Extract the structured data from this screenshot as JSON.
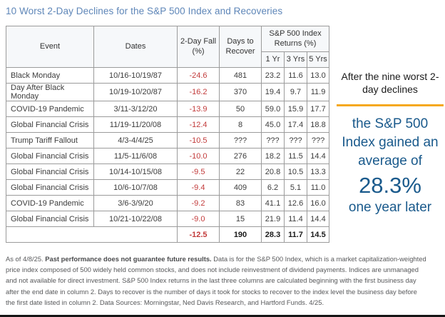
{
  "title": "10 Worst 2-Day Declines for the S&P 500 Index and Recoveries",
  "colors": {
    "title_blue": "#5e86b8",
    "callout_blue": "#1a5a8c",
    "accent_orange": "#f5a81e",
    "negative_red": "#c23b3b",
    "header_bg": "#f6f8fa",
    "outer_border": "#4d4d4d",
    "inner_border": "#9b9b9b"
  },
  "table": {
    "headers": {
      "event": "Event",
      "dates": "Dates",
      "two_day_fall": "2-Day Fall (%)",
      "days_to_recover": "Days to Recover",
      "returns_group": "S&P 500 Index Returns (%)",
      "sub": [
        "1 Yr",
        "3 Yrs",
        "5 Yrs"
      ]
    },
    "rows": [
      {
        "event": "Black Monday",
        "dates": "10/16-10/19/87",
        "fall": "-24.6",
        "days": "481",
        "yr1": "23.2",
        "yr3": "11.6",
        "yr5": "13.0"
      },
      {
        "event": "Day After Black Monday",
        "dates": "10/19-10/20/87",
        "fall": "-16.2",
        "days": "370",
        "yr1": "19.4",
        "yr3": "9.7",
        "yr5": "11.9"
      },
      {
        "event": "COVID-19 Pandemic",
        "dates": "3/11-3/12/20",
        "fall": "-13.9",
        "days": "50",
        "yr1": "59.0",
        "yr3": "15.9",
        "yr5": "17.7"
      },
      {
        "event": "Global Financial Crisis",
        "dates": "11/19-11/20/08",
        "fall": "-12.4",
        "days": "8",
        "yr1": "45.0",
        "yr3": "17.4",
        "yr5": "18.8"
      },
      {
        "event": "Trump Tariff Fallout",
        "dates": "4/3-4/4/25",
        "fall": "-10.5",
        "days": "???",
        "yr1": "???",
        "yr3": "???",
        "yr5": "???"
      },
      {
        "event": "Global Financial Crisis",
        "dates": "11/5-11/6/08",
        "fall": "-10.0",
        "days": "276",
        "yr1": "18.2",
        "yr3": "11.5",
        "yr5": "14.4"
      },
      {
        "event": "Global Financial Crisis",
        "dates": "10/14-10/15/08",
        "fall": "-9.5",
        "days": "22",
        "yr1": "20.8",
        "yr3": "10.5",
        "yr5": "13.3"
      },
      {
        "event": "Global Financial Crisis",
        "dates": "10/6-10/7/08",
        "fall": "-9.4",
        "days": "409",
        "yr1": "6.2",
        "yr3": "5.1",
        "yr5": "11.0"
      },
      {
        "event": "COVID-19 Pandemic",
        "dates": "3/6-3/9/20",
        "fall": "-9.2",
        "days": "83",
        "yr1": "41.1",
        "yr3": "12.6",
        "yr5": "16.0"
      },
      {
        "event": "Global Financial Crisis",
        "dates": "10/21-10/22/08",
        "fall": "-9.0",
        "days": "15",
        "yr1": "21.9",
        "yr3": "11.4",
        "yr5": "14.4"
      }
    ],
    "average_row": {
      "label": "",
      "fall": "-12.5",
      "days": "190",
      "yr1": "28.3",
      "yr3": "11.7",
      "yr5": "14.5"
    }
  },
  "callout": {
    "lead": "After the nine worst 2-day declines",
    "body": "the S&P 500 Index gained an average of",
    "highlight": "28.3%",
    "tail": "one year later"
  },
  "footnote": {
    "prefix": "As of 4/8/25. ",
    "bold": "Past performance does not guarantee future results.",
    "rest": " Data is for the S&P 500 Index, which is a market capitalization-weighted price index composed of 500 widely held common stocks, and does not include reinvestment of dividend payments. Indices are unmanaged and not available for direct investment. S&P 500 Index returns in the last three columns are calculated beginning with the first business day after the end date in column 2. Days to recover is the number of days it took for stocks to recover to the index level the business day before the first date listed in column 2. Data Sources: Morningstar, Ned Davis Research, and Hartford Funds. 4/25."
  },
  "chart_data": {
    "type": "table",
    "title": "10 Worst 2-Day Declines for the S&P 500 Index and Recoveries",
    "columns": [
      "Event",
      "Dates",
      "2-Day Fall (%)",
      "Days to Recover",
      "S&P 500 Index Returns (%) 1 Yr",
      "S&P 500 Index Returns (%) 3 Yrs",
      "S&P 500 Index Returns (%) 5 Yrs"
    ],
    "rows": [
      [
        "Black Monday",
        "10/16-10/19/87",
        -24.6,
        481,
        23.2,
        11.6,
        13.0
      ],
      [
        "Day After Black Monday",
        "10/19-10/20/87",
        -16.2,
        370,
        19.4,
        9.7,
        11.9
      ],
      [
        "COVID-19 Pandemic",
        "3/11-3/12/20",
        -13.9,
        50,
        59.0,
        15.9,
        17.7
      ],
      [
        "Global Financial Crisis",
        "11/19-11/20/08",
        -12.4,
        8,
        45.0,
        17.4,
        18.8
      ],
      [
        "Trump Tariff Fallout",
        "4/3-4/4/25",
        -10.5,
        "???",
        "???",
        "???",
        "???"
      ],
      [
        "Global Financial Crisis",
        "11/5-11/6/08",
        -10.0,
        276,
        18.2,
        11.5,
        14.4
      ],
      [
        "Global Financial Crisis",
        "10/14-10/15/08",
        -9.5,
        22,
        20.8,
        10.5,
        13.3
      ],
      [
        "Global Financial Crisis",
        "10/6-10/7/08",
        -9.4,
        409,
        6.2,
        5.1,
        11.0
      ],
      [
        "COVID-19 Pandemic",
        "3/6-3/9/20",
        -9.2,
        83,
        41.1,
        12.6,
        16.0
      ],
      [
        "Global Financial Crisis",
        "10/21-10/22/08",
        -9.0,
        15,
        21.9,
        11.4,
        14.4
      ]
    ],
    "average_row": [
      "",
      "",
      -12.5,
      190,
      28.3,
      11.7,
      14.5
    ],
    "annotation": "After the nine worst 2-day declines the S&P 500 Index gained an average of 28.3% one year later"
  }
}
